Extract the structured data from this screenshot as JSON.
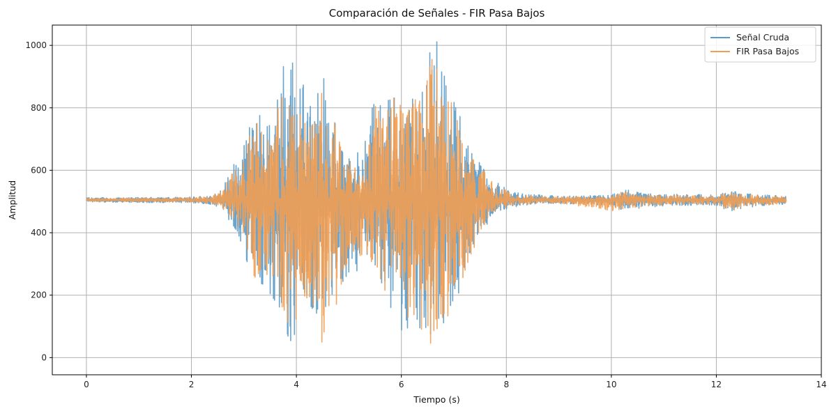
{
  "chart_data": {
    "type": "line",
    "title": "Comparación de Señales - FIR Pasa Bajos",
    "xlabel": "Tiempo (s)",
    "ylabel": "Amplitud",
    "xlim": [
      -0.65,
      14.0
    ],
    "ylim": [
      -55,
      1065
    ],
    "xticks": [
      0,
      2,
      4,
      6,
      8,
      10,
      12,
      14
    ],
    "yticks": [
      0,
      200,
      400,
      600,
      800,
      1000
    ],
    "grid": true,
    "legend_position": "top-right",
    "baseline": 505,
    "x_end": 13.33,
    "series": [
      {
        "name": "Señal Cruda",
        "color": "#5b9bc8",
        "envelope_x": [
          0,
          2.0,
          2.4,
          2.6,
          2.8,
          3.0,
          3.2,
          3.4,
          3.6,
          3.8,
          3.9,
          4.0,
          4.2,
          4.4,
          4.5,
          4.7,
          4.9,
          5.1,
          5.3,
          5.5,
          5.7,
          5.9,
          6.0,
          6.2,
          6.4,
          6.6,
          6.7,
          6.9,
          7.1,
          7.3,
          7.5,
          7.7,
          7.9,
          8.1,
          8.5,
          9.0,
          10.0,
          10.2,
          10.6,
          11.0,
          11.5,
          12.0,
          12.3,
          12.5,
          13.33
        ],
        "envelope_max": [
          512,
          514,
          520,
          540,
          630,
          700,
          810,
          760,
          840,
          960,
          975,
          860,
          880,
          840,
          905,
          800,
          670,
          640,
          690,
          860,
          820,
          880,
          830,
          820,
          950,
          1000,
          1015,
          880,
          780,
          680,
          640,
          590,
          555,
          530,
          522,
          518,
          520,
          540,
          528,
          522,
          524,
          520,
          535,
          525,
          518
        ],
        "envelope_min": [
          498,
          496,
          490,
          470,
          420,
          350,
          200,
          230,
          180,
          95,
          30,
          100,
          160,
          80,
          0,
          90,
          240,
          260,
          320,
          270,
          180,
          140,
          60,
          120,
          40,
          0,
          60,
          90,
          200,
          300,
          380,
          450,
          470,
          482,
          490,
          493,
          487,
          470,
          480,
          486,
          488,
          488,
          465,
          480,
          492
        ]
      },
      {
        "name": "FIR Pasa Bajos",
        "color": "#f29d52",
        "envelope_x": [
          0,
          2.0,
          2.4,
          2.6,
          2.8,
          3.0,
          3.2,
          3.4,
          3.6,
          3.8,
          3.9,
          4.0,
          4.2,
          4.4,
          4.5,
          4.7,
          4.9,
          5.1,
          5.3,
          5.5,
          5.7,
          5.9,
          6.0,
          6.2,
          6.4,
          6.6,
          6.7,
          6.9,
          7.1,
          7.3,
          7.5,
          7.7,
          7.9,
          8.1,
          8.5,
          9.0,
          10.0,
          10.2,
          10.6,
          11.0,
          11.5,
          12.0,
          12.3,
          12.5,
          13.33
        ],
        "envelope_max": [
          510,
          512,
          517,
          535,
          610,
          660,
          760,
          720,
          800,
          920,
          900,
          820,
          840,
          800,
          860,
          770,
          640,
          620,
          660,
          820,
          790,
          850,
          835,
          800,
          900,
          960,
          920,
          850,
          740,
          650,
          610,
          570,
          545,
          525,
          518,
          515,
          517,
          535,
          524,
          519,
          520,
          517,
          530,
          522,
          515
        ],
        "envelope_min": [
          500,
          498,
          493,
          475,
          435,
          375,
          240,
          260,
          220,
          130,
          25,
          130,
          190,
          110,
          40,
          120,
          260,
          280,
          340,
          290,
          210,
          170,
          90,
          150,
          70,
          40,
          90,
          120,
          220,
          320,
          395,
          460,
          476,
          486,
          493,
          495,
          470,
          475,
          484,
          489,
          490,
          491,
          470,
          484,
          494
        ]
      }
    ]
  }
}
